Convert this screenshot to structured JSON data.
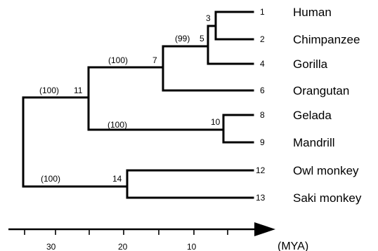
{
  "tree": {
    "leaves": [
      {
        "node": "1",
        "taxon": "Human"
      },
      {
        "node": "2",
        "taxon": "Chimpanzee"
      },
      {
        "node": "4",
        "taxon": "Gorilla"
      },
      {
        "node": "6",
        "taxon": "Orangutan"
      },
      {
        "node": "8",
        "taxon": "Gelada"
      },
      {
        "node": "9",
        "taxon": "Mandrill"
      },
      {
        "node": "12",
        "taxon": "Owl monkey"
      },
      {
        "node": "13",
        "taxon": "Saki monkey"
      }
    ],
    "internal_nodes": [
      {
        "node": "3",
        "support": ""
      },
      {
        "node": "5",
        "support": "(99)"
      },
      {
        "node": "7",
        "support": "(100)"
      },
      {
        "node": "10",
        "support": "(100)"
      },
      {
        "node": "11",
        "support": "(100)"
      },
      {
        "node": "14",
        "support": "(100)"
      }
    ]
  },
  "axis": {
    "ticks": [
      "30",
      "20",
      "10"
    ],
    "unit": "(MYA)"
  }
}
